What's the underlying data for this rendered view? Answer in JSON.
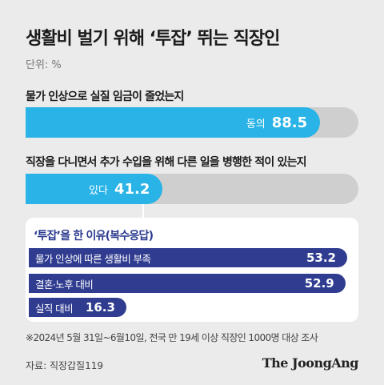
{
  "title": "생활비 벌기 위해 ‘투잡’ 뛰는 직장인",
  "unit": "단위: %",
  "note": "※2024년 5월 31일~6월10일, 전국 만 19세 이상 직장인 1000명 대상 조사",
  "source": "자료: 직장갑질119",
  "logo": "The JoongAng",
  "chart_data": [
    {
      "type": "bar",
      "title": "물가 인상으로 실질 임금이 줄었는지",
      "categories": [
        "동의"
      ],
      "values": [
        88.5
      ],
      "ylim": [
        0,
        100
      ],
      "color": "#29b3e6"
    },
    {
      "type": "bar",
      "title": "직장을 다니면서 추가 수입을 위해 다른 일을 병행한 적이 있는지",
      "categories": [
        "있다"
      ],
      "values": [
        41.2
      ],
      "ylim": [
        0,
        100
      ],
      "color": "#29b3e6"
    },
    {
      "type": "bar",
      "title": "‘투잡’을 한 이유(복수응답)",
      "categories": [
        "물가 인상에 따른 생활비 부족",
        "결혼·노후 대비",
        "실직 대비"
      ],
      "values": [
        53.2,
        52.9,
        16.3
      ],
      "ylim": [
        0,
        53.2
      ],
      "color": "#2f3c8f"
    }
  ]
}
